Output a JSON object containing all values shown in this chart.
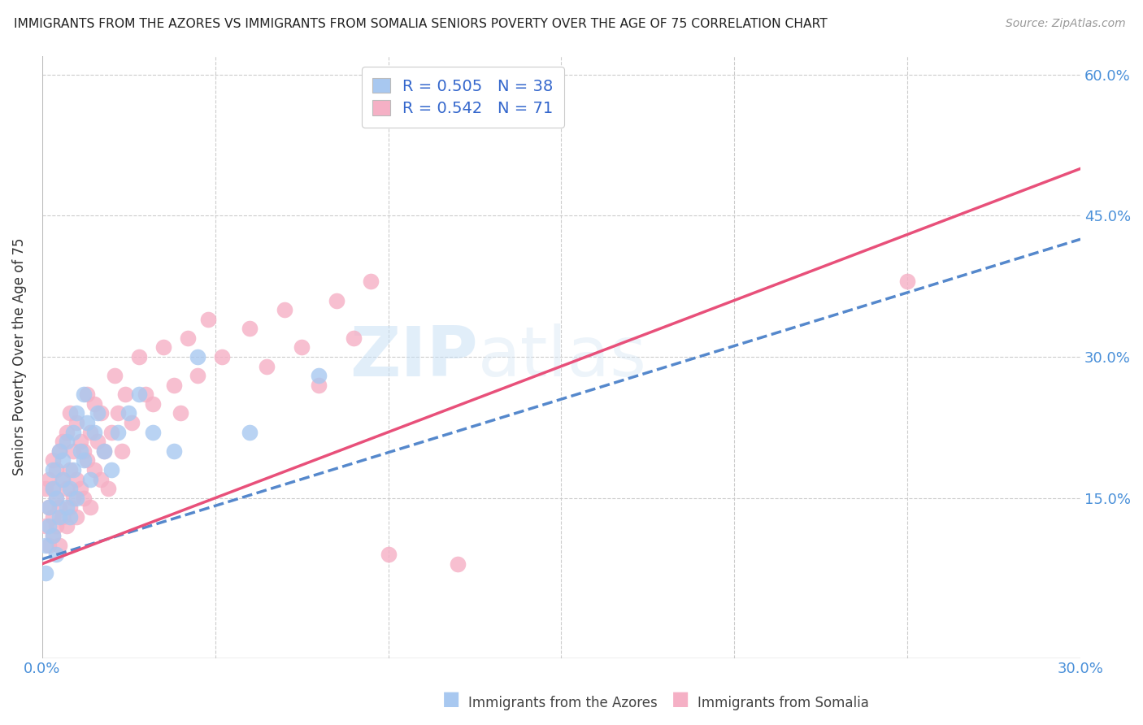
{
  "title": "IMMIGRANTS FROM THE AZORES VS IMMIGRANTS FROM SOMALIA SENIORS POVERTY OVER THE AGE OF 75 CORRELATION CHART",
  "source": "Source: ZipAtlas.com",
  "ylabel": "Seniors Poverty Over the Age of 75",
  "xlim": [
    0.0,
    0.3
  ],
  "ylim": [
    -0.02,
    0.62
  ],
  "azores_R": 0.505,
  "azores_N": 38,
  "somalia_R": 0.542,
  "somalia_N": 71,
  "azores_color": "#a8c8f0",
  "azores_line_color": "#5588cc",
  "somalia_color": "#f5b0c5",
  "somalia_line_color": "#e8507a",
  "watermark_zip": "ZIP",
  "watermark_atlas": "atlas",
  "azores_x": [
    0.001,
    0.001,
    0.002,
    0.002,
    0.003,
    0.003,
    0.003,
    0.004,
    0.004,
    0.005,
    0.005,
    0.006,
    0.006,
    0.007,
    0.007,
    0.008,
    0.008,
    0.009,
    0.009,
    0.01,
    0.01,
    0.011,
    0.012,
    0.012,
    0.013,
    0.014,
    0.015,
    0.016,
    0.018,
    0.02,
    0.022,
    0.025,
    0.028,
    0.032,
    0.038,
    0.045,
    0.06,
    0.08
  ],
  "azores_y": [
    0.1,
    0.07,
    0.12,
    0.14,
    0.11,
    0.16,
    0.18,
    0.09,
    0.15,
    0.13,
    0.2,
    0.17,
    0.19,
    0.14,
    0.21,
    0.13,
    0.16,
    0.22,
    0.18,
    0.15,
    0.24,
    0.2,
    0.19,
    0.26,
    0.23,
    0.17,
    0.22,
    0.24,
    0.2,
    0.18,
    0.22,
    0.24,
    0.26,
    0.22,
    0.2,
    0.3,
    0.22,
    0.28
  ],
  "somalia_x": [
    0.001,
    0.001,
    0.002,
    0.002,
    0.002,
    0.003,
    0.003,
    0.003,
    0.003,
    0.004,
    0.004,
    0.004,
    0.005,
    0.005,
    0.005,
    0.006,
    0.006,
    0.006,
    0.007,
    0.007,
    0.007,
    0.008,
    0.008,
    0.008,
    0.009,
    0.009,
    0.01,
    0.01,
    0.01,
    0.011,
    0.011,
    0.012,
    0.012,
    0.013,
    0.013,
    0.014,
    0.014,
    0.015,
    0.015,
    0.016,
    0.017,
    0.017,
    0.018,
    0.019,
    0.02,
    0.021,
    0.022,
    0.023,
    0.024,
    0.026,
    0.028,
    0.03,
    0.032,
    0.035,
    0.038,
    0.04,
    0.042,
    0.045,
    0.048,
    0.052,
    0.06,
    0.065,
    0.07,
    0.075,
    0.08,
    0.085,
    0.09,
    0.095,
    0.1,
    0.12,
    0.25
  ],
  "somalia_y": [
    0.12,
    0.16,
    0.1,
    0.14,
    0.17,
    0.11,
    0.13,
    0.16,
    0.19,
    0.12,
    0.15,
    0.18,
    0.1,
    0.14,
    0.2,
    0.13,
    0.17,
    0.21,
    0.12,
    0.16,
    0.22,
    0.14,
    0.18,
    0.24,
    0.15,
    0.2,
    0.13,
    0.17,
    0.23,
    0.16,
    0.21,
    0.15,
    0.2,
    0.26,
    0.19,
    0.14,
    0.22,
    0.18,
    0.25,
    0.21,
    0.17,
    0.24,
    0.2,
    0.16,
    0.22,
    0.28,
    0.24,
    0.2,
    0.26,
    0.23,
    0.3,
    0.26,
    0.25,
    0.31,
    0.27,
    0.24,
    0.32,
    0.28,
    0.34,
    0.3,
    0.33,
    0.29,
    0.35,
    0.31,
    0.27,
    0.36,
    0.32,
    0.38,
    0.09,
    0.08,
    0.38
  ],
  "line_azores_x0": 0.0,
  "line_azores_y0": 0.085,
  "line_azores_x1": 0.3,
  "line_azores_y1": 0.425,
  "line_somalia_x0": 0.0,
  "line_somalia_y0": 0.08,
  "line_somalia_x1": 0.3,
  "line_somalia_y1": 0.5
}
